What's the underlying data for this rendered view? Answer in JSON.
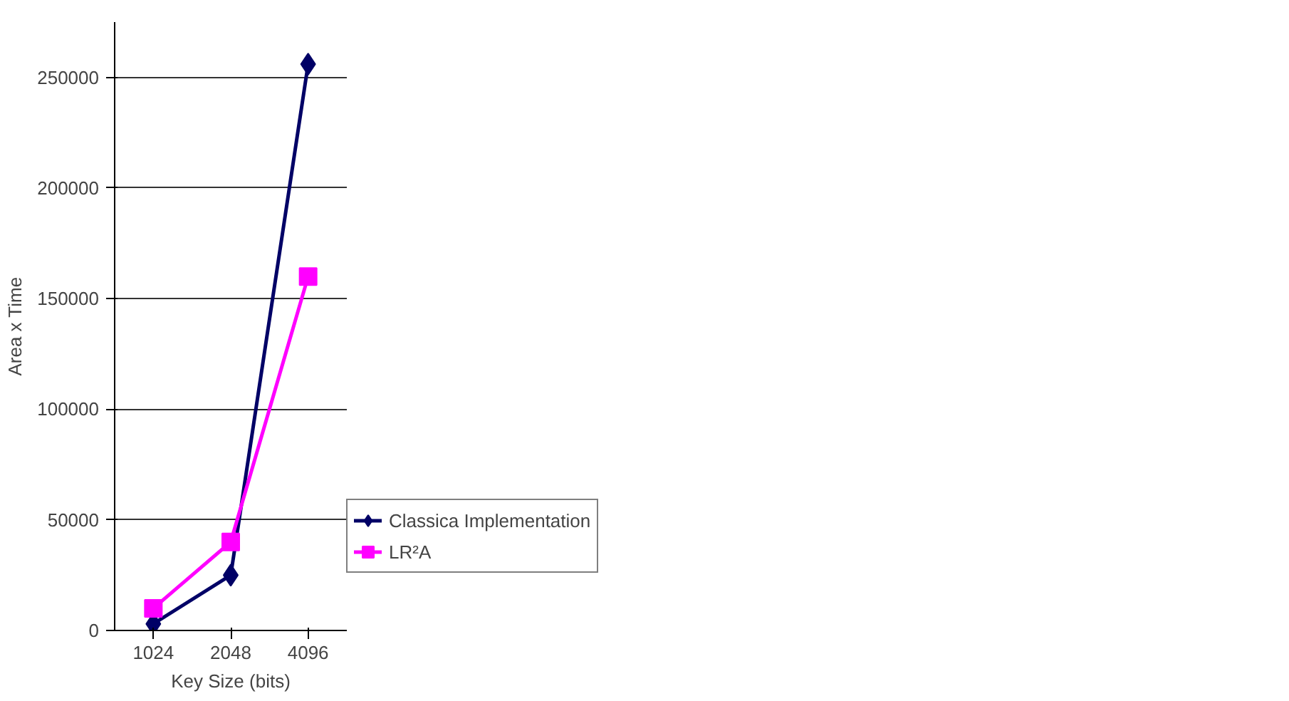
{
  "chart_data": {
    "type": "line",
    "xlabel": "Key Size (bits)",
    "ylabel": "Area x Time",
    "categories": [
      "1024",
      "2048",
      "4096"
    ],
    "series": [
      {
        "name": "Classica Implementation",
        "color": "#000066",
        "values": [
          3000,
          25000,
          256000
        ],
        "marker": "diamond"
      },
      {
        "name": "LR²A",
        "color": "#ff00ff",
        "values": [
          10000,
          40000,
          160000
        ],
        "marker": "square"
      }
    ],
    "ylim": [
      0,
      275000
    ],
    "yticks": [
      0,
      50000,
      100000,
      150000,
      200000,
      250000
    ],
    "grid": "y",
    "legend": "right",
    "line_style": "solid"
  }
}
